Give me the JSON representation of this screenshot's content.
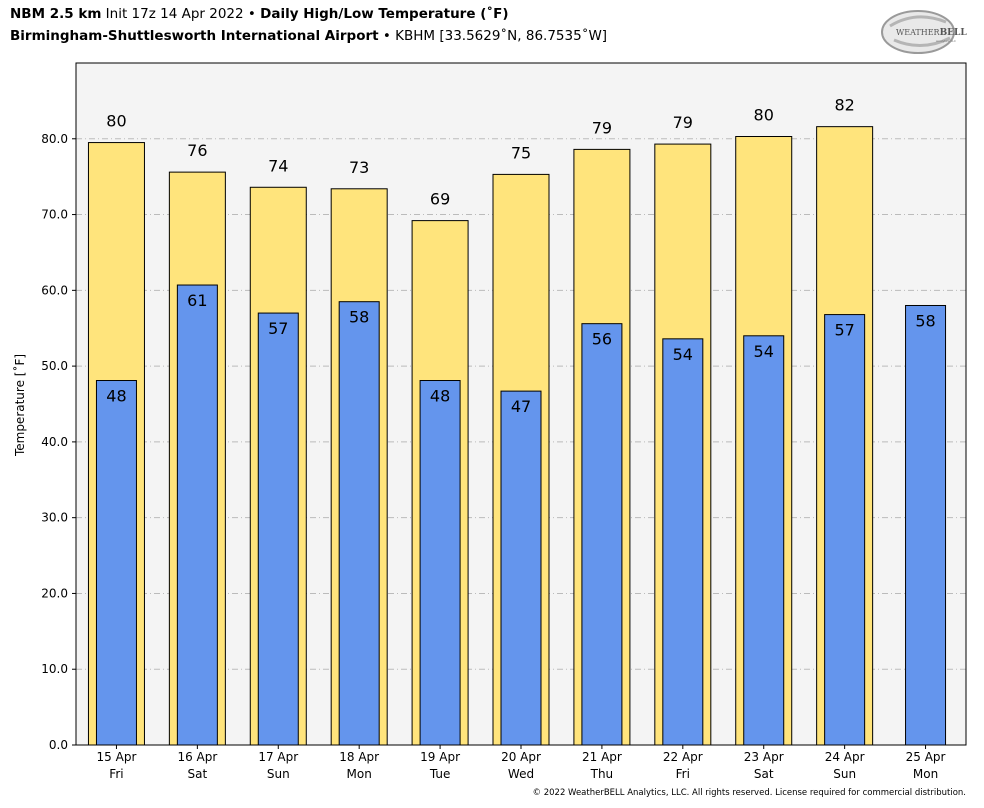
{
  "header": {
    "model": "NBM 2.5 km",
    "init": " Init 17z 14 Apr 2022 • ",
    "product": "Daily High/Low Temperature (˚F)",
    "station": "Birmingham-Shuttlesworth International Airport",
    "station_info": " • KBHM [33.5629˚N, 86.7535˚W]"
  },
  "logo": {
    "text_main": "WEATHER",
    "text_accent": "BELL",
    "text_small": "Analytics LLC"
  },
  "copyright": "© 2022 WeatherBELL Analytics, LLC. All rights reserved. License required for commercial distribution.",
  "colors": {
    "high": "#FFE47C",
    "low": "#6495ED",
    "plot_bg": "#F4F4F4",
    "grid": "#BBBBBB"
  },
  "chart_data": {
    "type": "bar",
    "ylabel": "Temperature [˚F]",
    "ylim": [
      0,
      90
    ],
    "yticks": [
      "0.0",
      "10.0",
      "20.0",
      "30.0",
      "40.0",
      "50.0",
      "60.0",
      "70.0",
      "80.0"
    ],
    "grid": true,
    "categories": [
      [
        "15 Apr",
        "Fri"
      ],
      [
        "16 Apr",
        "Sat"
      ],
      [
        "17 Apr",
        "Sun"
      ],
      [
        "18 Apr",
        "Mon"
      ],
      [
        "19 Apr",
        "Tue"
      ],
      [
        "20 Apr",
        "Wed"
      ],
      [
        "21 Apr",
        "Thu"
      ],
      [
        "22 Apr",
        "Fri"
      ],
      [
        "23 Apr",
        "Sat"
      ],
      [
        "24 Apr",
        "Sun"
      ],
      [
        "25 Apr",
        "Mon"
      ]
    ],
    "series": [
      {
        "key": "high",
        "values": [
          79.5,
          75.6,
          73.6,
          73.4,
          69.2,
          75.3,
          78.6,
          79.3,
          80.3,
          81.6,
          null
        ],
        "labels": [
          "80",
          "76",
          "74",
          "73",
          "69",
          "75",
          "79",
          "79",
          "80",
          "82",
          ""
        ]
      },
      {
        "key": "low",
        "values": [
          48.1,
          60.7,
          57.0,
          58.5,
          48.1,
          46.7,
          55.6,
          53.6,
          54.0,
          56.8,
          58.0
        ],
        "labels": [
          "48",
          "61",
          "57",
          "58",
          "48",
          "47",
          "56",
          "54",
          "54",
          "57",
          "58"
        ]
      }
    ]
  }
}
